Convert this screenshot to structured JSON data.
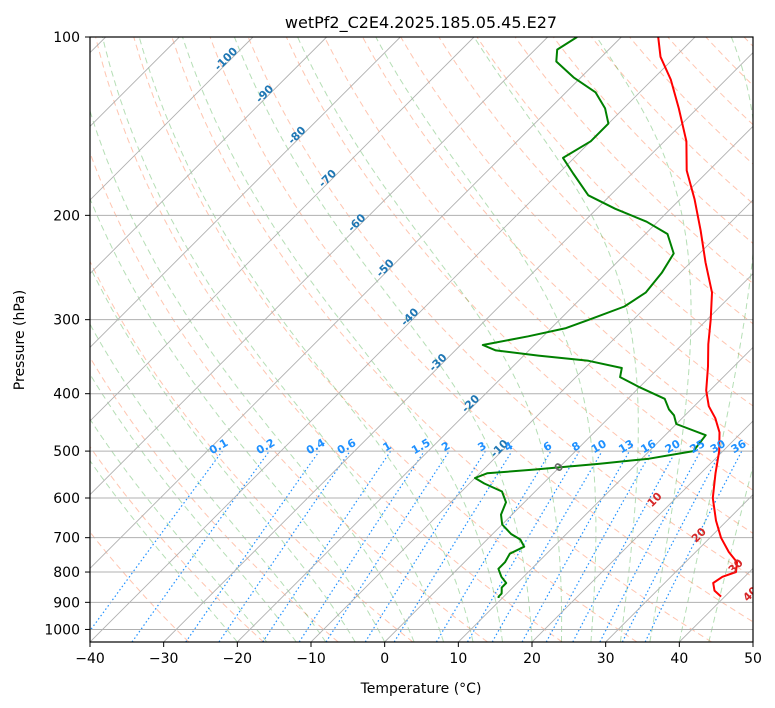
{
  "chart_data": {
    "type": "line",
    "chart_kind": "skew-T log-P",
    "title": "wetPf2_C2E4.2025.185.05.45.E27",
    "xlabel": "Temperature (°C)",
    "ylabel": "Pressure (hPa)",
    "xlim": [
      -40,
      50
    ],
    "ylim": [
      1050,
      100
    ],
    "y_scale": "log",
    "x_ticks": [
      -40,
      -30,
      -20,
      -10,
      0,
      10,
      20,
      30,
      40,
      50
    ],
    "y_ticks": [
      100,
      200,
      300,
      400,
      500,
      600,
      700,
      800,
      900,
      1000
    ],
    "grid": true,
    "series": [
      {
        "color": "#ff0000",
        "points": [
          [
            39.5,
            880
          ],
          [
            37.8,
            860
          ],
          [
            36.6,
            835
          ],
          [
            37.0,
            815
          ],
          [
            38.2,
            800
          ],
          [
            37.0,
            770
          ],
          [
            34.5,
            740
          ],
          [
            31.5,
            700
          ],
          [
            28.5,
            655
          ],
          [
            25.0,
            600
          ],
          [
            22.0,
            545
          ],
          [
            19.5,
            500
          ],
          [
            17.0,
            465
          ],
          [
            14.5,
            440
          ],
          [
            12.0,
            420
          ],
          [
            9.5,
            395
          ],
          [
            6.5,
            360
          ],
          [
            3.5,
            330
          ],
          [
            0.5,
            300
          ],
          [
            -3.0,
            270
          ],
          [
            -8.0,
            240
          ],
          [
            -13.0,
            212
          ],
          [
            -18.0,
            188
          ],
          [
            -23.0,
            168
          ],
          [
            -27.0,
            150
          ],
          [
            -32.5,
            132
          ],
          [
            -37.5,
            118
          ],
          [
            -42.0,
            108
          ],
          [
            -45.0,
            100
          ]
        ]
      },
      {
        "color": "#008000",
        "points": [
          [
            9.5,
            885
          ],
          [
            9.3,
            880
          ],
          [
            9.3,
            870
          ],
          [
            9.0,
            862
          ],
          [
            8.5,
            850
          ],
          [
            8.5,
            835
          ],
          [
            7.0,
            815
          ],
          [
            5.5,
            790
          ],
          [
            5.5,
            770
          ],
          [
            5.0,
            745
          ],
          [
            6.0,
            725
          ],
          [
            4.5,
            705
          ],
          [
            2.5,
            690
          ],
          [
            0.0,
            665
          ],
          [
            -1.5,
            640
          ],
          [
            -2.5,
            610
          ],
          [
            -4.5,
            585
          ],
          [
            -8.0,
            567
          ],
          [
            -10.0,
            555
          ],
          [
            -9.0,
            545
          ],
          [
            -3.0,
            537
          ],
          [
            5.0,
            525
          ],
          [
            11.0,
            515
          ],
          [
            16.0,
            500
          ],
          [
            15.5,
            470
          ],
          [
            10.0,
            450
          ],
          [
            8.5,
            435
          ],
          [
            7.0,
            425
          ],
          [
            5.0,
            408
          ],
          [
            0.0,
            390
          ],
          [
            -4.0,
            375
          ],
          [
            -5.0,
            362
          ],
          [
            -10.5,
            352
          ],
          [
            -18.0,
            345
          ],
          [
            -24.5,
            338
          ],
          [
            -27.0,
            331
          ],
          [
            -22.0,
            320
          ],
          [
            -18.0,
            310
          ],
          [
            -16.0,
            300
          ],
          [
            -13.0,
            285
          ],
          [
            -12.0,
            270
          ],
          [
            -12.5,
            250
          ],
          [
            -13.5,
            232
          ],
          [
            -17.0,
            215
          ],
          [
            -21.5,
            205
          ],
          [
            -27.5,
            195
          ],
          [
            -33.0,
            185
          ],
          [
            -38.0,
            170
          ],
          [
            -41.5,
            160
          ],
          [
            -40.0,
            150
          ],
          [
            -40.0,
            140
          ],
          [
            -42.5,
            132
          ],
          [
            -46.0,
            124
          ],
          [
            -51.0,
            117
          ],
          [
            -55.5,
            110
          ],
          [
            -57.0,
            105
          ],
          [
            -56.0,
            100
          ]
        ]
      }
    ],
    "dry_adiabat_labels": [
      "-100",
      "-90",
      "-80",
      "-70",
      "-60",
      "-50",
      "-40",
      "-30",
      "-20",
      "-10"
    ],
    "moist_adiabat_labels": [
      "0",
      "10",
      "20",
      "30",
      "40"
    ],
    "mixing_ratio_labels": [
      "0.1",
      "0.2",
      "0.4",
      "0.6",
      "1",
      "1.5",
      "2",
      "3",
      "4",
      "6",
      "8",
      "10",
      "13",
      "16",
      "20",
      "25",
      "30",
      "36"
    ]
  },
  "colors": {
    "temperature": "#ff0000",
    "dewpoint": "#008000",
    "isotherm_grid": "#b0b0b0",
    "dry_adiabat": "#ff7f50",
    "moist_adiabat": "#2ca02c",
    "mixing_ratio": "#1e90ff"
  }
}
